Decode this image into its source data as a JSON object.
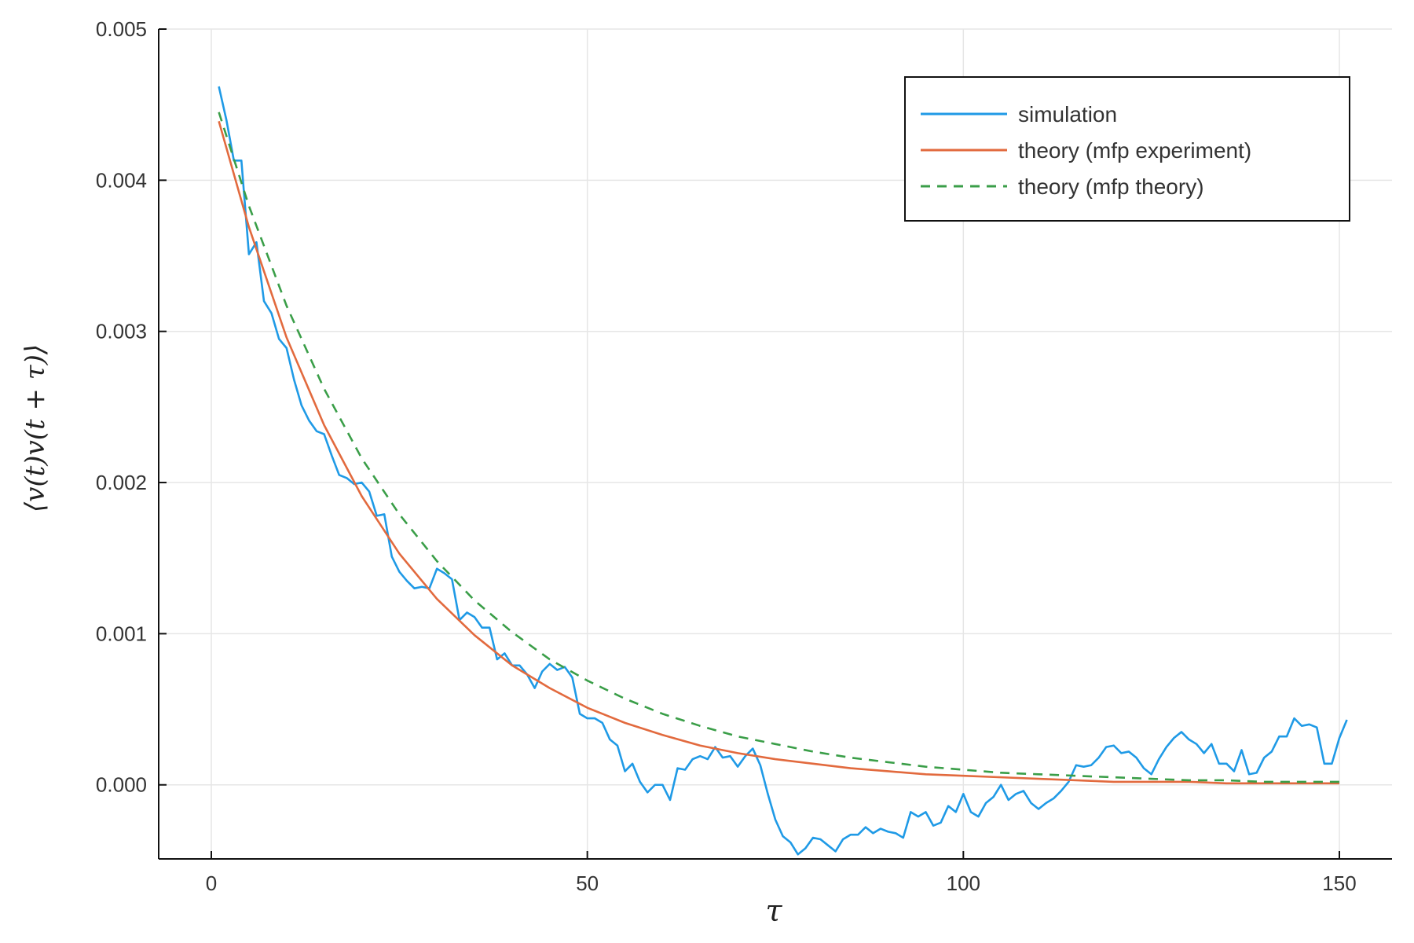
{
  "chart_data": {
    "type": "line",
    "title": "",
    "xlabel": "τ",
    "ylabel": "⟨v(t)v(t + τ)⟩",
    "xlim": [
      -7,
      157
    ],
    "ylim": [
      -0.00049,
      0.005
    ],
    "xticks": [
      0,
      50,
      100,
      150
    ],
    "xtick_labels": [
      "0",
      "50",
      "100",
      "150"
    ],
    "yticks": [
      0.0,
      0.001,
      0.002,
      0.003,
      0.004,
      0.005
    ],
    "ytick_labels": [
      "0.000",
      "0.001",
      "0.002",
      "0.003",
      "0.004",
      "0.005"
    ],
    "grid": true,
    "legend_position": "top-right",
    "series": [
      {
        "name": "simulation",
        "color": "#1f9ae6",
        "dash": "solid",
        "x": [
          1,
          2,
          3,
          4,
          5,
          6,
          7,
          8,
          9,
          10,
          11,
          12,
          13,
          14,
          15,
          16,
          17,
          18,
          19,
          20,
          21,
          22,
          23,
          24,
          25,
          26,
          27,
          28,
          29,
          30,
          31,
          32,
          33,
          34,
          35,
          36,
          37,
          38,
          39,
          40,
          41,
          42,
          43,
          44,
          45,
          46,
          47,
          48,
          49,
          50,
          51,
          52,
          53,
          54,
          55,
          56,
          57,
          58,
          59,
          60,
          61,
          62,
          63,
          64,
          65,
          66,
          67,
          68,
          69,
          70,
          71,
          72,
          73,
          74,
          75,
          76,
          77,
          78,
          79,
          80,
          81,
          82,
          83,
          84,
          85,
          86,
          87,
          88,
          89,
          90,
          91,
          92,
          93,
          94,
          95,
          96,
          97,
          98,
          99,
          100,
          101,
          102,
          103,
          104,
          105,
          106,
          107,
          108,
          109,
          110,
          111,
          112,
          113,
          114,
          115,
          116,
          117,
          118,
          119,
          120,
          121,
          122,
          123,
          124,
          125,
          126,
          127,
          128,
          129,
          130,
          131,
          132,
          133,
          134,
          135,
          136,
          137,
          138,
          139,
          140,
          141,
          142,
          143,
          144,
          145,
          146,
          147,
          148,
          149,
          150,
          151
        ],
        "y": [
          0.00462,
          0.0044,
          0.00413,
          0.00413,
          0.00351,
          0.00359,
          0.0032,
          0.00312,
          0.00295,
          0.00289,
          0.00268,
          0.00251,
          0.00241,
          0.00234,
          0.00232,
          0.00218,
          0.00205,
          0.00203,
          0.00199,
          0.002,
          0.00194,
          0.00178,
          0.00179,
          0.00151,
          0.00141,
          0.00135,
          0.0013,
          0.00131,
          0.0013,
          0.00143,
          0.0014,
          0.00136,
          0.00109,
          0.00114,
          0.00111,
          0.00104,
          0.00104,
          0.00083,
          0.00087,
          0.00079,
          0.00079,
          0.00073,
          0.00064,
          0.00075,
          0.0008,
          0.00076,
          0.00078,
          0.00071,
          0.00047,
          0.00044,
          0.00044,
          0.00041,
          0.0003,
          0.00026,
          9e-05,
          0.00014,
          2e-05,
          -5e-05,
          0.0,
          0.0,
          -0.0001,
          0.00011,
          0.0001,
          0.00017,
          0.00019,
          0.00017,
          0.00025,
          0.00018,
          0.00019,
          0.00012,
          0.00019,
          0.00024,
          0.00013,
          -6e-05,
          -0.00023,
          -0.00034,
          -0.00038,
          -0.00046,
          -0.00042,
          -0.00035,
          -0.00036,
          -0.0004,
          -0.00044,
          -0.00036,
          -0.00033,
          -0.00033,
          -0.00028,
          -0.00032,
          -0.00029,
          -0.00031,
          -0.00032,
          -0.00035,
          -0.00018,
          -0.00021,
          -0.00018,
          -0.00027,
          -0.00025,
          -0.00014,
          -0.00018,
          -6e-05,
          -0.00018,
          -0.00021,
          -0.00012,
          -8e-05,
          0.0,
          -0.0001,
          -6e-05,
          -4e-05,
          -0.00012,
          -0.00016,
          -0.00012,
          -9e-05,
          -4e-05,
          2e-05,
          0.00013,
          0.00012,
          0.00013,
          0.00018,
          0.00025,
          0.00026,
          0.00021,
          0.00022,
          0.00018,
          0.00011,
          7e-05,
          0.00017,
          0.00025,
          0.00031,
          0.00035,
          0.0003,
          0.00027,
          0.00021,
          0.00027,
          0.00014,
          0.00014,
          9e-05,
          0.00023,
          7e-05,
          8e-05,
          0.00018,
          0.00022,
          0.00032,
          0.00032,
          0.00044,
          0.00039,
          0.0004,
          0.00038,
          0.00014,
          0.00014,
          0.00031,
          0.00043
        ]
      },
      {
        "name": "theory (mfp experiment)",
        "color": "#e26a3e",
        "dash": "solid",
        "x": [
          1,
          5,
          10,
          15,
          20,
          25,
          30,
          35,
          40,
          45,
          50,
          55,
          60,
          65,
          70,
          75,
          80,
          85,
          90,
          95,
          100,
          105,
          110,
          115,
          120,
          125,
          130,
          135,
          140,
          145,
          150
        ],
        "y": [
          0.00439,
          0.00369,
          0.00296,
          0.00238,
          0.00191,
          0.00153,
          0.00123,
          0.00099,
          0.00079,
          0.00064,
          0.00051,
          0.00041,
          0.00033,
          0.00026,
          0.00021,
          0.00017,
          0.00014,
          0.00011,
          9e-05,
          7e-05,
          6e-05,
          5e-05,
          4e-05,
          3e-05,
          2e-05,
          2e-05,
          2e-05,
          1e-05,
          1e-05,
          1e-05,
          1e-05
        ]
      },
      {
        "name": "theory (mfp theory)",
        "color": "#3a9e48",
        "dash": "dashed",
        "x": [
          1,
          5,
          10,
          15,
          20,
          25,
          30,
          35,
          40,
          45,
          50,
          55,
          60,
          65,
          70,
          75,
          80,
          85,
          90,
          95,
          100,
          105,
          110,
          115,
          120,
          125,
          130,
          135,
          140,
          145,
          150
        ],
        "y": [
          0.00445,
          0.00383,
          0.00317,
          0.00262,
          0.00216,
          0.00179,
          0.00148,
          0.00122,
          0.00101,
          0.00083,
          0.00069,
          0.00057,
          0.00047,
          0.00039,
          0.00032,
          0.00027,
          0.00022,
          0.00018,
          0.00015,
          0.00012,
          0.0001,
          8e-05,
          7e-05,
          6e-05,
          5e-05,
          4e-05,
          3e-05,
          3e-05,
          2e-05,
          2e-05,
          2e-05
        ]
      }
    ]
  }
}
